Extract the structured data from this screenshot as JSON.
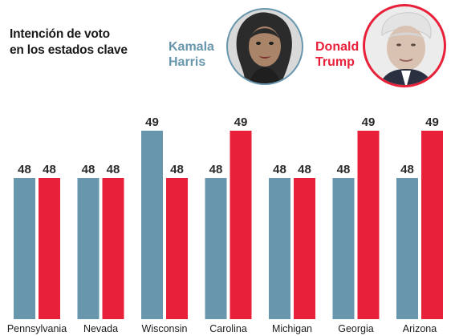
{
  "title": {
    "line1": "Intención de voto",
    "line2": "en los estados clave"
  },
  "candidates": [
    {
      "first": "Kamala",
      "last": "Harris",
      "color": "#6896ad"
    },
    {
      "first": "Donald",
      "last": "Trump",
      "color": "#e8203a"
    }
  ],
  "chart_data": {
    "type": "bar",
    "title": "Intención de voto en los estados clave",
    "categories": [
      "Pennsylvania",
      "Nevada",
      "Wisconsin",
      "Carolina",
      "Michigan",
      "Georgia",
      "Arizona"
    ],
    "series": [
      {
        "name": "Kamala Harris",
        "color": "#6896ad",
        "values": [
          48,
          48,
          49,
          48,
          48,
          48,
          48
        ]
      },
      {
        "name": "Donald Trump",
        "color": "#e8203a",
        "values": [
          48,
          48,
          48,
          49,
          48,
          49,
          49
        ]
      }
    ],
    "data_labels": true,
    "grid": false,
    "legend": "top-right"
  }
}
